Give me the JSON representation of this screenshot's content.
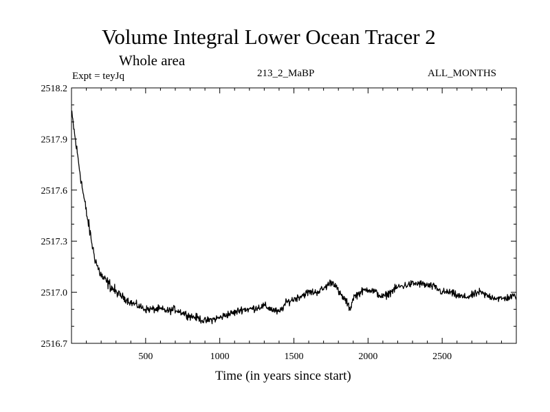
{
  "header": {
    "title": "Volume Integral Lower Ocean Tracer 2",
    "subtitle": "Whole area",
    "expt_label": "Expt = teyJq",
    "run_label": "213_2_MaBP",
    "months_label": "ALL_MONTHS"
  },
  "chart_data": {
    "type": "line",
    "title": "Volume Integral Lower Ocean Tracer 2",
    "subtitle": "Whole area",
    "xlabel": "Time (in years since start)",
    "ylabel": "",
    "xlim": [
      0,
      3000
    ],
    "ylim": [
      2516.7,
      2518.2
    ],
    "x_ticks": [
      500,
      1000,
      1500,
      2000,
      2500
    ],
    "x_tick_labels": [
      "500",
      "1000",
      "1500",
      "2000",
      "2500"
    ],
    "y_ticks": [
      2516.7,
      2517.0,
      2517.3,
      2517.6,
      2517.9,
      2518.2
    ],
    "y_tick_labels": [
      "2516.7",
      "2517.0",
      "2517.3",
      "2517.6",
      "2517.9",
      "2518.2"
    ],
    "grid": false,
    "series": [
      {
        "name": "Lower Ocean Tracer 2",
        "color": "#000000",
        "x": [
          0,
          10,
          25,
          50,
          75,
          100,
          125,
          150,
          175,
          200,
          225,
          250,
          300,
          350,
          400,
          450,
          500,
          550,
          600,
          650,
          700,
          750,
          800,
          850,
          900,
          950,
          1000,
          1050,
          1100,
          1150,
          1200,
          1250,
          1300,
          1350,
          1400,
          1450,
          1500,
          1550,
          1600,
          1650,
          1700,
          1750,
          1780,
          1800,
          1850,
          1880,
          1900,
          1950,
          2000,
          2050,
          2100,
          2150,
          2200,
          2250,
          2300,
          2350,
          2400,
          2450,
          2500,
          2550,
          2600,
          2650,
          2700,
          2750,
          2800,
          2850,
          2900,
          2950,
          3000
        ],
        "values": [
          2518.05,
          2518.0,
          2517.9,
          2517.75,
          2517.6,
          2517.47,
          2517.35,
          2517.23,
          2517.15,
          2517.1,
          2517.07,
          2517.05,
          2517.0,
          2516.97,
          2516.94,
          2516.92,
          2516.9,
          2516.9,
          2516.9,
          2516.89,
          2516.9,
          2516.88,
          2516.86,
          2516.85,
          2516.83,
          2516.84,
          2516.85,
          2516.87,
          2516.88,
          2516.9,
          2516.9,
          2516.91,
          2516.92,
          2516.9,
          2516.88,
          2516.94,
          2516.96,
          2516.98,
          2517.0,
          2517.0,
          2517.02,
          2517.06,
          2517.05,
          2517.0,
          2516.95,
          2516.9,
          2516.97,
          2517.0,
          2517.02,
          2517.0,
          2516.97,
          2517.0,
          2517.03,
          2517.04,
          2517.05,
          2517.05,
          2517.04,
          2517.03,
          2517.0,
          2517.0,
          2516.98,
          2516.97,
          2516.98,
          2517.0,
          2516.98,
          2516.97,
          2516.96,
          2516.97,
          2516.98
        ]
      }
    ]
  }
}
